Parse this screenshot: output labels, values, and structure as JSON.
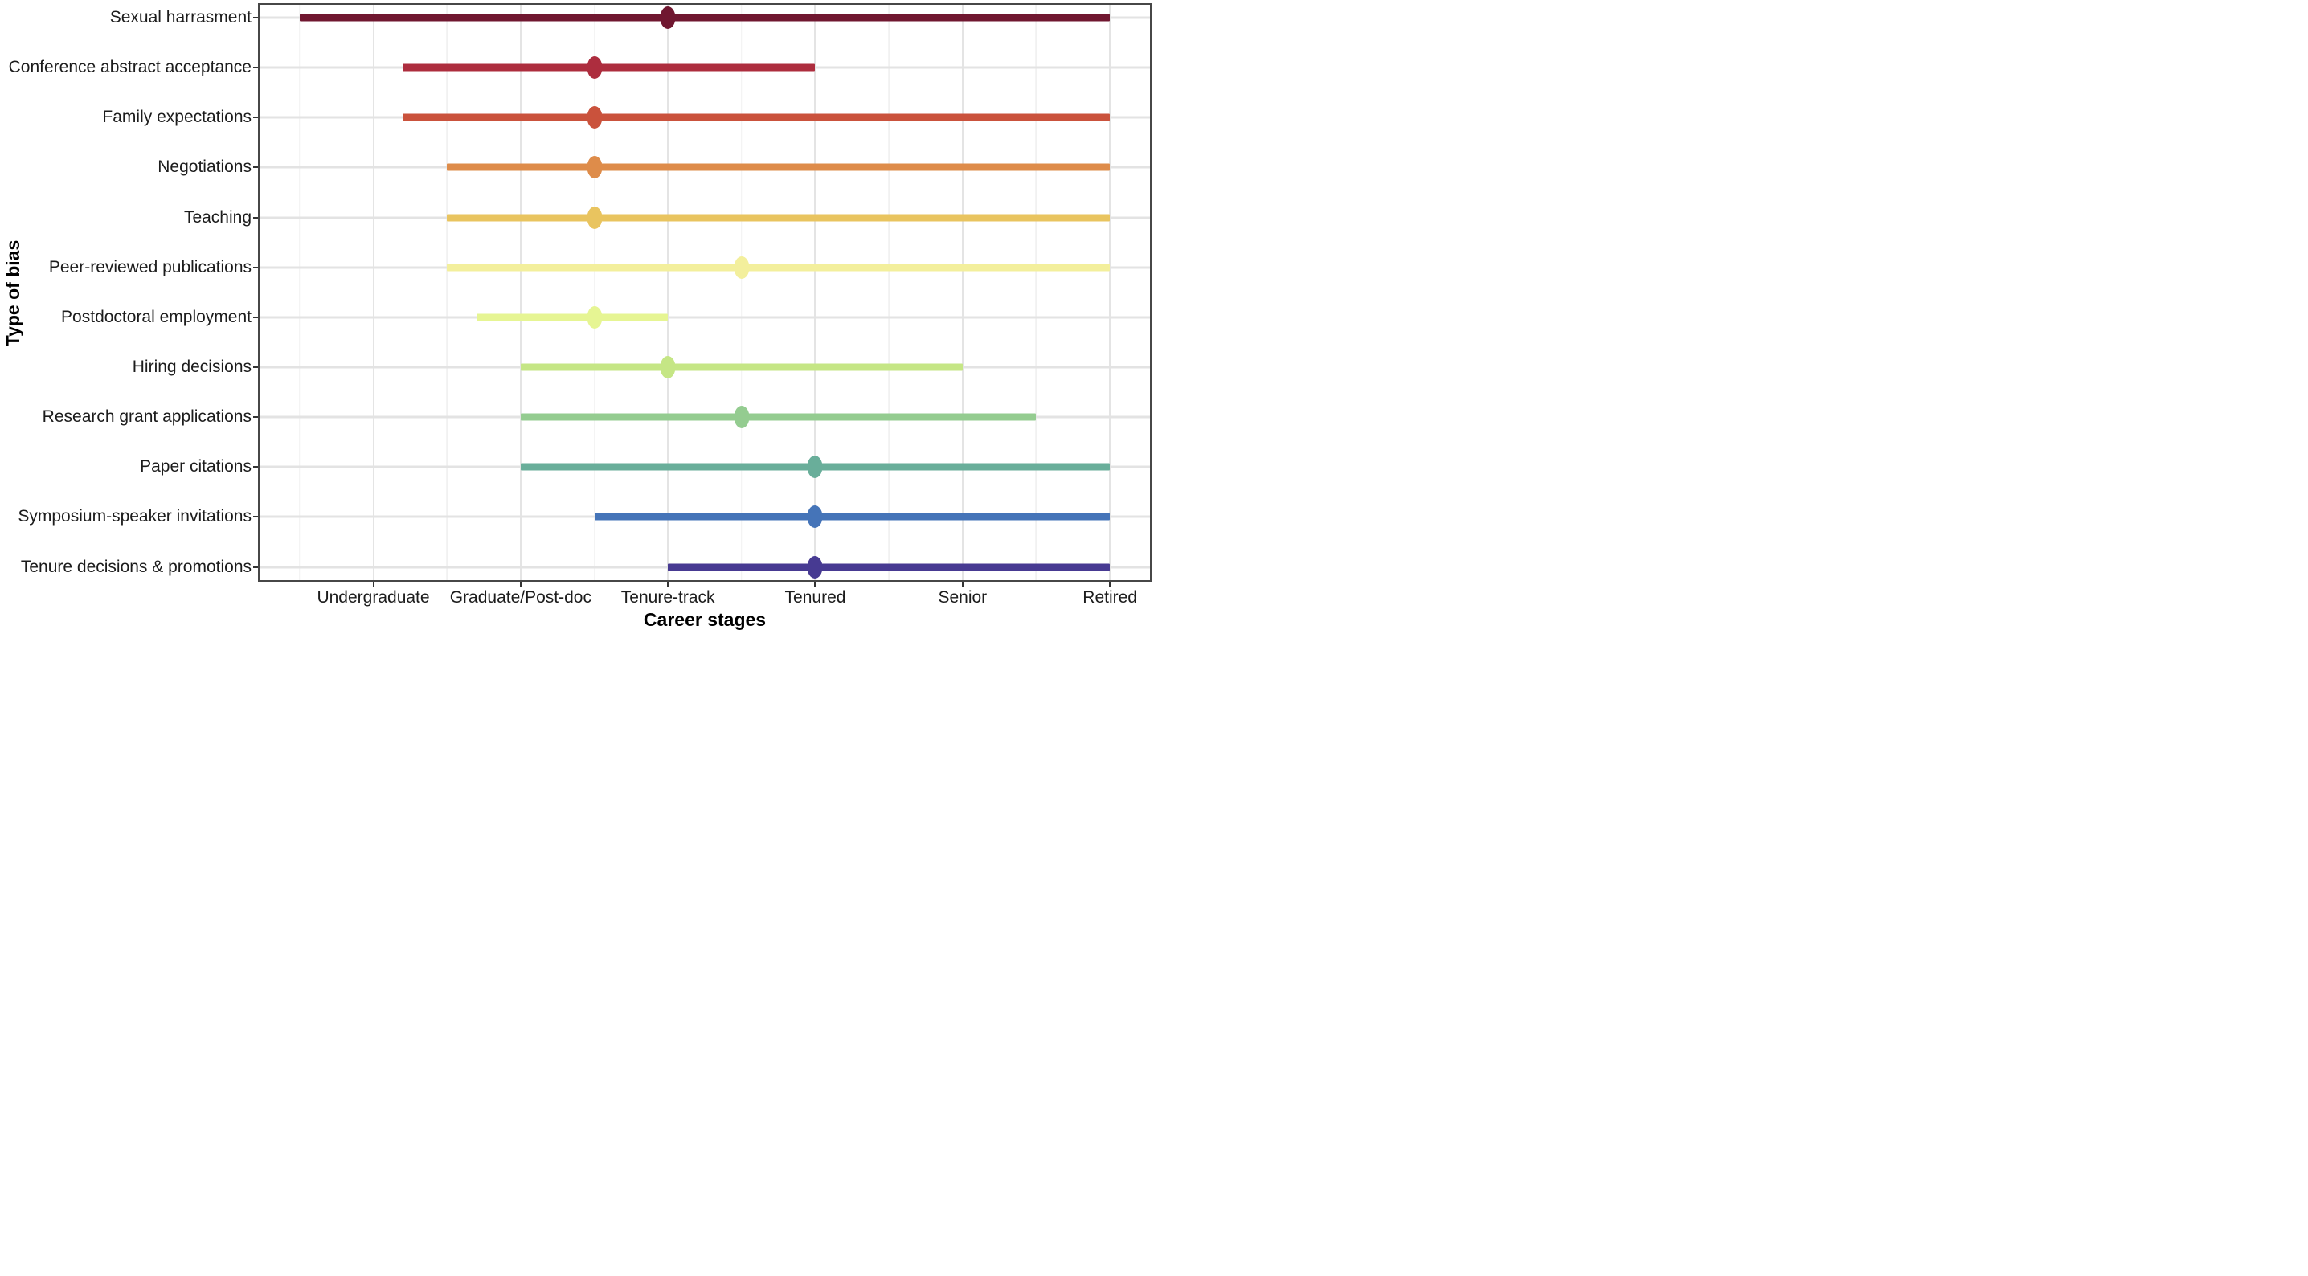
{
  "chart_data": {
    "type": "dumbbell",
    "title": "",
    "xlabel": "Career stages",
    "ylabel": "Type of bias",
    "x_categories": [
      "Undergraduate",
      "Graduate/Post-doc",
      "Tenure-track",
      "Tenured",
      "Senior",
      "Retired"
    ],
    "x_category_values": [
      1,
      2,
      3,
      4,
      5,
      6
    ],
    "xlim": [
      0.228,
      6.272
    ],
    "grid": {
      "vertical_major": true,
      "vertical_minor": true,
      "horizontal_major": true
    },
    "legend": "none",
    "rows": [
      {
        "label": "Sexual harrasment",
        "start": 0.5,
        "dot": 3.0,
        "end": 6.0,
        "color": "#701730"
      },
      {
        "label": "Conference abstract acceptance",
        "start": 1.2,
        "dot": 2.5,
        "end": 4.0,
        "color": "#AD2D3E"
      },
      {
        "label": "Family expectations",
        "start": 1.2,
        "dot": 2.5,
        "end": 6.0,
        "color": "#CA523C"
      },
      {
        "label": "Negotiations",
        "start": 1.5,
        "dot": 2.5,
        "end": 6.0,
        "color": "#DE8C4A"
      },
      {
        "label": "Teaching",
        "start": 1.5,
        "dot": 2.5,
        "end": 6.0,
        "color": "#E9C45F"
      },
      {
        "label": "Peer-reviewed publications",
        "start": 1.5,
        "dot": 3.5,
        "end": 6.0,
        "color": "#F3EF9C"
      },
      {
        "label": "Postdoctoral employment",
        "start": 1.7,
        "dot": 2.5,
        "end": 3.0,
        "color": "#E6F593"
      },
      {
        "label": "Hiring decisions",
        "start": 2.0,
        "dot": 3.0,
        "end": 5.0,
        "color": "#C5E685"
      },
      {
        "label": "Research grant applications",
        "start": 2.0,
        "dot": 3.5,
        "end": 5.5,
        "color": "#94CC90"
      },
      {
        "label": "Paper citations",
        "start": 2.0,
        "dot": 4.0,
        "end": 6.0,
        "color": "#69AE9A"
      },
      {
        "label": "Symposium-speaker invitations",
        "start": 2.5,
        "dot": 4.0,
        "end": 6.0,
        "color": "#4574B8"
      },
      {
        "label": "Tenure decisions & promotions",
        "start": 3.0,
        "dot": 4.0,
        "end": 6.0,
        "color": "#473A92"
      }
    ]
  }
}
